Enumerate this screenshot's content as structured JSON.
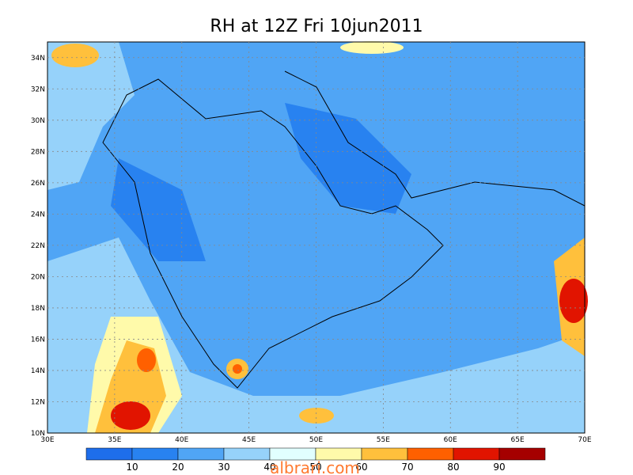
{
  "title": "RH at 12Z Fri 10jun2011",
  "x_ticks": [
    "30E",
    "35E",
    "40E",
    "45E",
    "50E",
    "55E",
    "60E",
    "65E",
    "70E"
  ],
  "y_ticks": [
    "10N",
    "12N",
    "14N",
    "16N",
    "18N",
    "20N",
    "22N",
    "24N",
    "26N",
    "28N",
    "30N",
    "32N",
    "34N"
  ],
  "colorbar": {
    "labels": [
      "10",
      "20",
      "30",
      "40",
      "50",
      "60",
      "70",
      "80",
      "90"
    ],
    "colors": [
      "#1e6eeb",
      "#2882f0",
      "#50a5f5",
      "#96d2fa",
      "#e1ffff",
      "#fffaaa",
      "#ffc03c",
      "#ff6000",
      "#e11400",
      "#a50000"
    ]
  },
  "watermark": "albrari.com"
}
